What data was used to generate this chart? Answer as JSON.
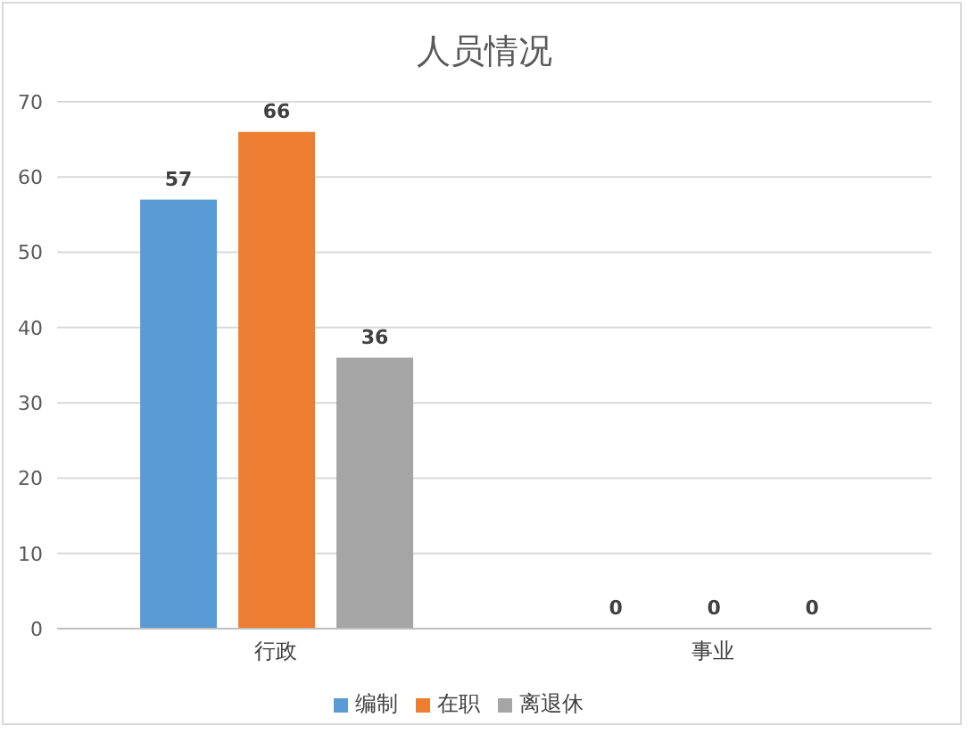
{
  "chart_data": {
    "type": "bar",
    "title": "人员情况",
    "categories": [
      "行政",
      "事业"
    ],
    "series": [
      {
        "name": "编制",
        "color": "#5b9bd5",
        "values": [
          57,
          0
        ]
      },
      {
        "name": "在职",
        "color": "#ed7d31",
        "values": [
          66,
          0
        ]
      },
      {
        "name": "离退休",
        "color": "#a5a5a5",
        "values": [
          36,
          0
        ]
      }
    ],
    "ylim": [
      0,
      70
    ],
    "yticks": [
      0,
      10,
      20,
      30,
      40,
      50,
      60,
      70
    ],
    "grid": "y",
    "legend": "bottom",
    "data_labels": true
  }
}
